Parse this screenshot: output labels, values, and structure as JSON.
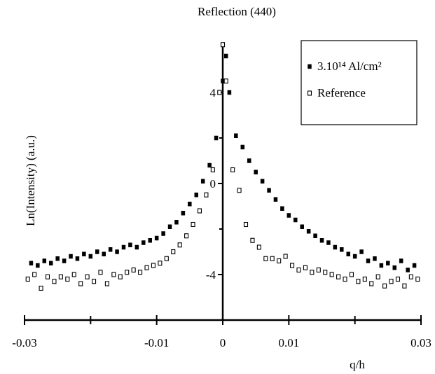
{
  "chart_data": {
    "type": "scatter",
    "title": "Reflection (440)",
    "x_label": "q/h",
    "y_label": "Ln(Intensity) (a.u.)",
    "xlim": [
      -0.03,
      0.03
    ],
    "ylim": [
      -6,
      6.2
    ],
    "xticks": [
      -0.03,
      -0.01,
      0,
      0.01,
      0.03
    ],
    "xminor_ticks": [
      -0.02,
      0.02
    ],
    "yticks": [
      -4,
      0,
      4
    ],
    "yminor_ticks": [
      -2,
      2
    ],
    "grid": false,
    "legend": "upper right",
    "series": [
      {
        "name": "3.10¹⁴ Al/cm²",
        "color": "#000000",
        "marker": "filled-square",
        "x": [
          -0.029,
          -0.028,
          -0.027,
          -0.026,
          -0.025,
          -0.024,
          -0.023,
          -0.022,
          -0.021,
          -0.02,
          -0.019,
          -0.018,
          -0.017,
          -0.016,
          -0.015,
          -0.014,
          -0.013,
          -0.012,
          -0.011,
          -0.01,
          -0.009,
          -0.008,
          -0.007,
          -0.006,
          -0.005,
          -0.004,
          -0.003,
          -0.002,
          -0.001,
          0,
          0.0005,
          0.001,
          0.002,
          0.003,
          0.004,
          0.005,
          0.006,
          0.007,
          0.008,
          0.009,
          0.01,
          0.011,
          0.012,
          0.013,
          0.014,
          0.015,
          0.016,
          0.017,
          0.018,
          0.019,
          0.02,
          0.021,
          0.022,
          0.023,
          0.024,
          0.025,
          0.026,
          0.027,
          0.028,
          0.029
        ],
        "values": [
          -3.5,
          -3.6,
          -3.4,
          -3.5,
          -3.3,
          -3.4,
          -3.2,
          -3.3,
          -3.1,
          -3.2,
          -3.0,
          -3.1,
          -2.9,
          -3.0,
          -2.8,
          -2.7,
          -2.8,
          -2.6,
          -2.5,
          -2.4,
          -2.2,
          -1.9,
          -1.7,
          -1.3,
          -0.9,
          -0.5,
          0.1,
          0.8,
          2.0,
          4.5,
          5.6,
          4.0,
          2.1,
          1.6,
          1.0,
          0.5,
          0.1,
          -0.3,
          -0.7,
          -1.1,
          -1.4,
          -1.6,
          -1.9,
          -2.1,
          -2.3,
          -2.5,
          -2.6,
          -2.8,
          -2.9,
          -3.1,
          -3.2,
          -3.0,
          -3.4,
          -3.3,
          -3.6,
          -3.5,
          -3.7,
          -3.4,
          -3.8,
          -3.6
        ]
      },
      {
        "name": "Reference",
        "color": "#000000",
        "marker": "open-square",
        "x": [
          -0.0295,
          -0.0285,
          -0.0275,
          -0.0265,
          -0.0255,
          -0.0245,
          -0.0235,
          -0.0225,
          -0.0215,
          -0.0205,
          -0.0195,
          -0.0185,
          -0.0175,
          -0.0165,
          -0.0155,
          -0.0145,
          -0.0135,
          -0.0125,
          -0.0115,
          -0.0105,
          -0.0095,
          -0.0085,
          -0.0075,
          -0.0065,
          -0.0055,
          -0.0045,
          -0.0035,
          -0.0025,
          -0.0015,
          -0.0005,
          0,
          0.0005,
          0.0015,
          0.0025,
          0.0035,
          0.0045,
          0.0055,
          0.0065,
          0.0075,
          0.0085,
          0.0095,
          0.0105,
          0.0115,
          0.0125,
          0.0135,
          0.0145,
          0.0155,
          0.0165,
          0.0175,
          0.0185,
          0.0195,
          0.0205,
          0.0215,
          0.0225,
          0.0235,
          0.0245,
          0.0255,
          0.0265,
          0.0275,
          0.0285,
          0.0295
        ],
        "values": [
          -4.2,
          -4.0,
          -4.6,
          -4.1,
          -4.3,
          -4.1,
          -4.2,
          -4.0,
          -4.4,
          -4.1,
          -4.3,
          -3.9,
          -4.4,
          -4.0,
          -4.1,
          -3.9,
          -3.8,
          -3.9,
          -3.7,
          -3.6,
          -3.5,
          -3.3,
          -3.0,
          -2.7,
          -2.3,
          -1.8,
          -1.2,
          -0.5,
          0.6,
          4.0,
          6.1,
          4.5,
          0.6,
          -0.3,
          -1.8,
          -2.5,
          -2.8,
          -3.3,
          -3.3,
          -3.4,
          -3.2,
          -3.6,
          -3.8,
          -3.7,
          -3.9,
          -3.8,
          -3.9,
          -4.0,
          -4.1,
          -4.2,
          -4.0,
          -4.3,
          -4.2,
          -4.4,
          -4.1,
          -4.5,
          -4.3,
          -4.2,
          -4.5,
          -4.1,
          -4.2
        ]
      }
    ]
  }
}
